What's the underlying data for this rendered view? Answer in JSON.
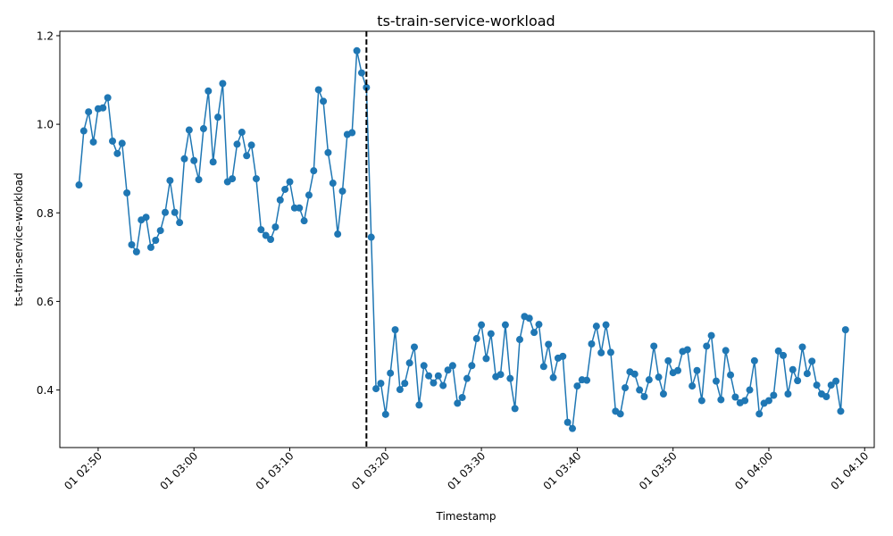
{
  "chart_data": {
    "type": "line",
    "title": "ts-train-service-workload",
    "xlabel": "Timestamp",
    "ylabel": "ts-train-service-workload",
    "x_start": "01 02:48",
    "x_step_minutes": 0.5,
    "x_ticks": [
      "01 02:50",
      "01 03:00",
      "01 03:10",
      "01 03:20",
      "01 03:30",
      "01 03:40",
      "01 03:50",
      "01 04:00",
      "01 04:10"
    ],
    "y_ticks": [
      "0.4",
      "0.6",
      "0.8",
      "1.0",
      "1.2"
    ],
    "xlim": [
      "01 02:46",
      "01 04:11"
    ],
    "ylim": [
      0.27,
      1.21
    ],
    "vline_at": "01 03:18",
    "line_color": "#1f77b4",
    "vline_color": "#000000",
    "series": [
      {
        "values": [
          0.863,
          0.985,
          1.028,
          0.96,
          1.035,
          1.037,
          1.06,
          0.962,
          0.934,
          0.957,
          0.845,
          0.728,
          0.712,
          0.784,
          0.79,
          0.722,
          0.738,
          0.76,
          0.801,
          0.873,
          0.801,
          0.778,
          0.922,
          0.987,
          0.918,
          0.875,
          0.99,
          1.075,
          0.915,
          1.016,
          1.092,
          0.87,
          0.877,
          0.955,
          0.982,
          0.929,
          0.953,
          0.877,
          0.762,
          0.749,
          0.74,
          0.768,
          0.829,
          0.853,
          0.87,
          0.811,
          0.811,
          0.782,
          0.84,
          0.895,
          1.078,
          1.052,
          0.936,
          0.867,
          0.752,
          0.849,
          0.977,
          0.981,
          1.166,
          1.116,
          1.083,
          0.745,
          0.403,
          0.415,
          0.345,
          0.438,
          0.536,
          0.401,
          0.415,
          0.461,
          0.497,
          0.366,
          0.455,
          0.432,
          0.416,
          0.432,
          0.41,
          0.445,
          0.455,
          0.37,
          0.383,
          0.426,
          0.455,
          0.516,
          0.547,
          0.471,
          0.527,
          0.43,
          0.435,
          0.547,
          0.426,
          0.358,
          0.514,
          0.566,
          0.562,
          0.53,
          0.548,
          0.453,
          0.503,
          0.428,
          0.472,
          0.476,
          0.327,
          0.313,
          0.409,
          0.423,
          0.422,
          0.504,
          0.544,
          0.484,
          0.547,
          0.485,
          0.352,
          0.346,
          0.405,
          0.441,
          0.436,
          0.4,
          0.385,
          0.423,
          0.499,
          0.429,
          0.391,
          0.466,
          0.439,
          0.444,
          0.487,
          0.491,
          0.409,
          0.444,
          0.376,
          0.499,
          0.523,
          0.42,
          0.378,
          0.489,
          0.434,
          0.384,
          0.371,
          0.376,
          0.4,
          0.466,
          0.346,
          0.37,
          0.376,
          0.388,
          0.488,
          0.478,
          0.391,
          0.446,
          0.421,
          0.497,
          0.437,
          0.465,
          0.411,
          0.391,
          0.385,
          0.411,
          0.42,
          0.352,
          0.536
        ]
      }
    ]
  }
}
